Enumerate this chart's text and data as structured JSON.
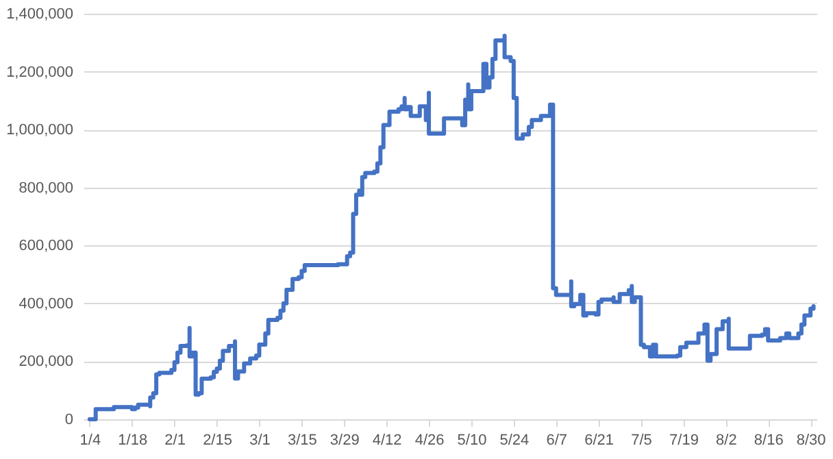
{
  "chart_data": {
    "type": "step",
    "color": "#4472c4",
    "line_style": "solid",
    "grid": "y",
    "x": [
      "--01-04",
      "--01-06",
      "--01-11",
      "--01-12",
      "--01-17",
      "--01-18",
      "--01-19",
      "--01-20",
      "--01-23",
      "--01-24",
      "--01-24",
      "--01-25",
      "--01-26",
      "--01-26",
      "--01-27",
      "--01-30",
      "--01-31",
      "--02-01",
      "--02-02",
      "--02-03",
      "--02-05",
      "--02-06",
      "--02-06",
      "--02-07",
      "--02-08",
      "--02-09",
      "--02-10",
      "--02-13",
      "--02-14",
      "--02-15",
      "--02-16",
      "--02-17",
      "--02-19",
      "--02-21",
      "--02-21",
      "--02-22",
      "--02-23",
      "--02-24",
      "--02-26",
      "--02-28",
      "--03-01",
      "--03-03",
      "--03-04",
      "--03-07",
      "--03-08",
      "--03-09",
      "--03-10",
      "--03-12",
      "--03-14",
      "--03-15",
      "--03-16",
      "--03-27",
      "--03-30",
      "--03-31",
      "--04-01",
      "--04-01",
      "--04-02",
      "--04-03",
      "--04-03",
      "--04-04",
      "--04-05",
      "--04-08",
      "--04-09",
      "--04-10",
      "--04-11",
      "--04-13",
      "--04-16",
      "--04-17",
      "--04-18",
      "--04-18",
      "--04-19",
      "--04-20",
      "--04-23",
      "--04-23",
      "--04-25",
      "--04-26",
      "--04-26",
      "--04-30",
      "--05-01",
      "--05-07",
      "--05-07",
      "--05-08",
      "--05-09",
      "--05-09",
      "--05-10",
      "--05-14",
      "--05-14",
      "--05-15",
      "--05-16",
      "--05-17",
      "--05-18",
      "--05-19",
      "--05-21",
      "--05-21",
      "--05-23",
      "--05-24",
      "--05-25",
      "--05-27",
      "--05-29",
      "--05-30",
      "--06-02",
      "--06-05",
      "--06-06",
      "--06-07",
      "--06-11",
      "--06-12",
      "--06-12",
      "--06-13",
      "--06-15",
      "--06-16",
      "--06-17",
      "--06-20",
      "--06-21",
      "--06-22",
      "--06-26",
      "--06-26",
      "--06-28",
      "--07-01",
      "--07-02",
      "--07-02",
      "--07-03",
      "--07-05",
      "--07-05",
      "--07-06",
      "--07-08",
      "--07-09",
      "--07-10",
      "--07-17",
      "--07-18",
      "--07-20",
      "--07-23",
      "--07-24",
      "--07-26",
      "--07-27",
      "--07-28",
      "--07-30",
      "--07-30",
      "--08-01",
      "--08-03",
      "--08-03",
      "--08-07",
      "--08-10",
      "--08-14",
      "--08-15",
      "--08-16",
      "--08-20",
      "--08-22",
      "--08-23",
      "--08-26",
      "--08-27",
      "--08-28",
      "--08-30",
      "--08-31"
    ],
    "values": [
      0,
      35000,
      35000,
      42000,
      42000,
      35000,
      40000,
      50000,
      50000,
      45000,
      75000,
      90000,
      90000,
      155000,
      160000,
      160000,
      170000,
      197000,
      230000,
      253000,
      255000,
      315000,
      217000,
      230000,
      85000,
      90000,
      140000,
      145000,
      164000,
      175000,
      202000,
      236000,
      253000,
      269000,
      141000,
      165000,
      165000,
      193000,
      210000,
      220000,
      258000,
      296000,
      343000,
      350000,
      375000,
      400000,
      447000,
      484000,
      490000,
      512000,
      532000,
      535000,
      563000,
      575000,
      648000,
      709000,
      775000,
      789000,
      775000,
      836000,
      850000,
      855000,
      883000,
      939000,
      1016000,
      1062000,
      1070000,
      1080000,
      1109000,
      1070000,
      1078000,
      1047000,
      1055000,
      1080000,
      1033000,
      1127000,
      986000,
      986000,
      1039000,
      1039000,
      1015000,
      1103000,
      1156000,
      1070000,
      1133000,
      1149000,
      1227000,
      1145000,
      1180000,
      1244000,
      1308000,
      1308000,
      1324000,
      1250000,
      1237000,
      1109000,
      969000,
      983000,
      1009000,
      1033000,
      1047000,
      1086000,
      452000,
      429000,
      429000,
      476000,
      390000,
      398000,
      429000,
      358000,
      366000,
      362000,
      405000,
      413000,
      421000,
      405000,
      432000,
      446000,
      460000,
      405000,
      421000,
      421000,
      257000,
      249000,
      217000,
      257000,
      217000,
      220000,
      249000,
      264000,
      264000,
      296000,
      327000,
      202000,
      225000,
      233000,
      311000,
      338000,
      347000,
      244000,
      244000,
      288000,
      292000,
      311000,
      272000,
      280000,
      296000,
      280000,
      296000,
      327000,
      358000,
      382000,
      390000
    ],
    "xlim": [
      "--01-02",
      "--09-01"
    ],
    "xticks": [
      {
        "value": "--01-04",
        "label": "1/4"
      },
      {
        "value": "--01-18",
        "label": "1/18"
      },
      {
        "value": "--02-01",
        "label": "2/1"
      },
      {
        "value": "--02-15",
        "label": "2/15"
      },
      {
        "value": "--03-01",
        "label": "3/1"
      },
      {
        "value": "--03-15",
        "label": "3/15"
      },
      {
        "value": "--03-29",
        "label": "3/29"
      },
      {
        "value": "--04-12",
        "label": "4/12"
      },
      {
        "value": "--04-26",
        "label": "4/26"
      },
      {
        "value": "--05-10",
        "label": "5/10"
      },
      {
        "value": "--05-24",
        "label": "5/24"
      },
      {
        "value": "--06-07",
        "label": "6/7"
      },
      {
        "value": "--06-21",
        "label": "6/21"
      },
      {
        "value": "--07-05",
        "label": "7/5"
      },
      {
        "value": "--07-19",
        "label": "7/19"
      },
      {
        "value": "--08-02",
        "label": "8/2"
      },
      {
        "value": "--08-16",
        "label": "8/16"
      },
      {
        "value": "--08-30",
        "label": "8/30"
      }
    ],
    "ylim": [
      0,
      1400000
    ],
    "yticks": [
      {
        "value": 0,
        "label": "0"
      },
      {
        "value": 200000,
        "label": "200,000"
      },
      {
        "value": 400000,
        "label": "400,000"
      },
      {
        "value": 600000,
        "label": "600,000"
      },
      {
        "value": 800000,
        "label": "800,000"
      },
      {
        "value": 1000000,
        "label": "1,000,000"
      },
      {
        "value": 1200000,
        "label": "1,200,000"
      },
      {
        "value": 1400000,
        "label": "1,400,000"
      }
    ]
  }
}
